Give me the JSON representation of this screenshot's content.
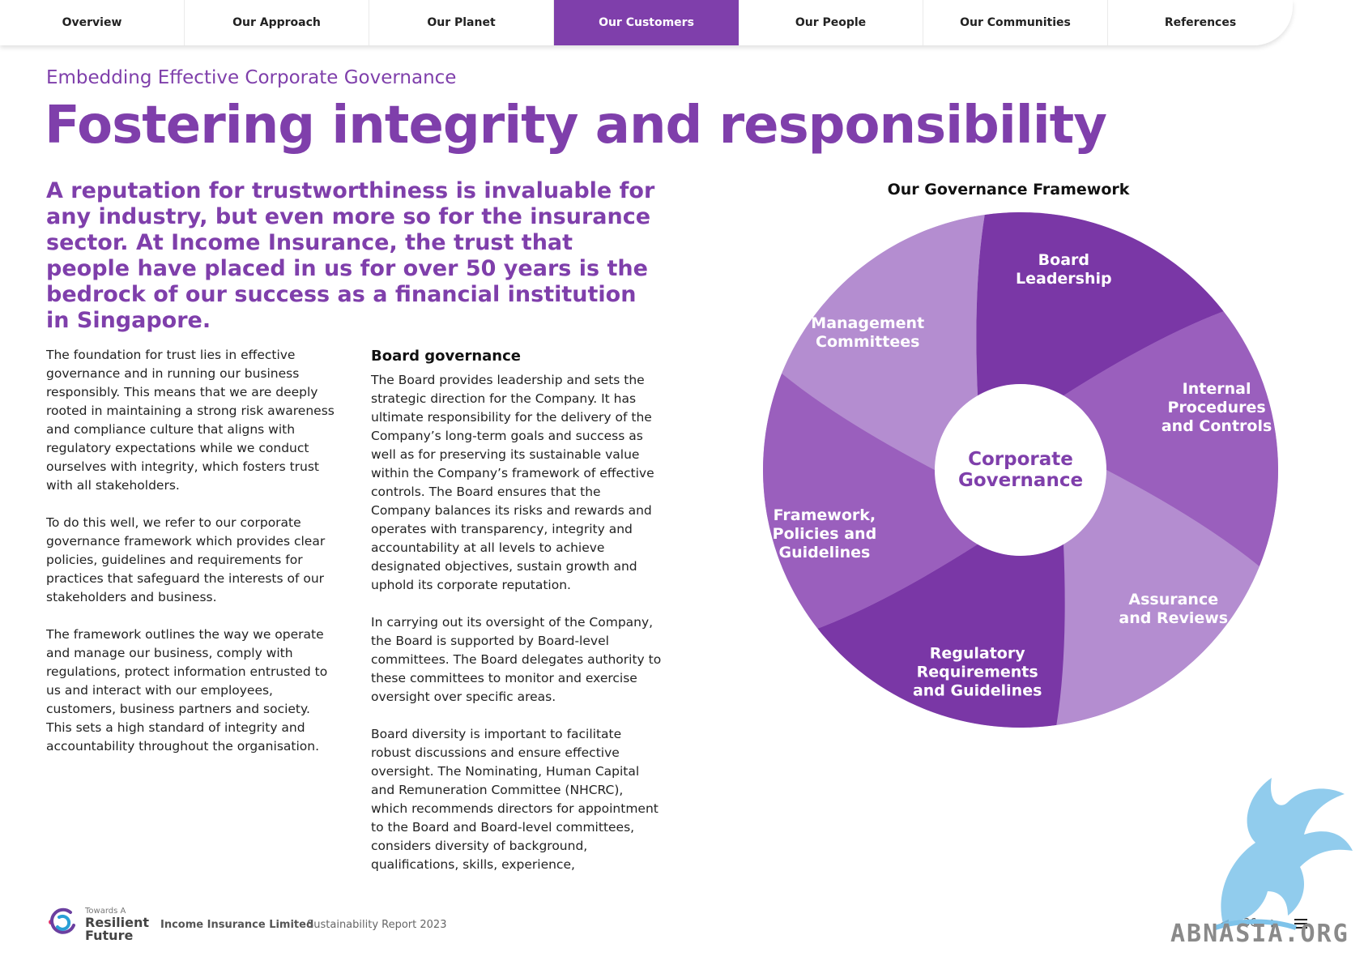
{
  "nav": {
    "tabs": [
      "Overview",
      "Our Approach",
      "Our Planet",
      "Our Customers",
      "Our People",
      "Our Communities",
      "References"
    ],
    "active_index": 3
  },
  "eyebrow": "Embedding Effective Corporate Governance",
  "title": "Fostering integrity and responsibility",
  "lead": "A reputation for trustworthiness is invaluable for any industry, but even more so for the insurance sector. At Income Insurance, the trust that people have placed in us for over 50 years is the bedrock of our success as a financial institution in Singapore.",
  "column1": {
    "p1": "The foundation for trust lies in effective governance and in running our business responsibly. This means that we are deeply rooted in maintaining a strong risk awareness and compliance culture that aligns with regulatory expectations while we conduct ourselves with integrity, which fosters trust with all stakeholders.",
    "p2": "To do this well, we refer to our corporate governance framework which provides clear policies, guidelines and requirements for practices that safeguard the interests of our stakeholders and business.",
    "p3": "The framework outlines the way we operate and manage our business, comply with regulations, protect information entrusted to us and interact with our employees, customers, business partners and society. This sets a high standard of integrity and accountability throughout the organisation."
  },
  "column2": {
    "heading": "Board governance",
    "p1": "The Board provides leadership and sets the strategic direction for the Company. It has ultimate responsibility for the delivery of the Company’s long-term goals and success as well as for preserving its sustainable value within the Company’s framework of effective controls. The Board ensures that the Company balances its risks and rewards and operates with transparency, integrity and accountability at all levels to achieve designated objectives, sustain growth and uphold its corporate reputation.",
    "p2": "In carrying out its oversight of the Company, the Board is supported by Board-level committees. The Board delegates authority to these committees to monitor and exercise oversight over specific areas.",
    "p3": "Board diversity is important to facilitate robust discussions and ensure effective oversight. The Nominating, Human Capital and Remuneration Committee (NHCRC), which recommends directors for appointment to the Board and Board-level committees, considers diversity of background, qualifications, skills, experience,"
  },
  "framework": {
    "title": "Our Governance Framework",
    "center_line1": "Corporate",
    "center_line2": "Governance",
    "segments": [
      {
        "lines": [
          "Board",
          "Leadership"
        ],
        "color": "#7a37a6"
      },
      {
        "lines": [
          "Internal",
          "Procedures",
          "and Controls"
        ],
        "color": "#9a5fbd"
      },
      {
        "lines": [
          "Assurance",
          "and Reviews"
        ],
        "color": "#b48dd0"
      },
      {
        "lines": [
          "Regulatory",
          "Requirements",
          "and Guidelines"
        ],
        "color": "#7a37a6"
      },
      {
        "lines": [
          "Framework,",
          "Policies and",
          "Guidelines"
        ],
        "color": "#9a5fbd"
      },
      {
        "lines": [
          "Management",
          "Committees"
        ],
        "color": "#b48dd0"
      }
    ]
  },
  "footer": {
    "logo_small": "Towards A",
    "logo_line1": "Resilient",
    "logo_line2": "Future",
    "company": "Income Insurance Limited",
    "report": "Sustainability Report 2023",
    "page_number": "36"
  },
  "watermark": "ABNASIA.ORG",
  "colors": {
    "accent": "#7f3fab",
    "dark": "#7a37a6",
    "mid": "#9a5fbd",
    "light": "#b48dd0"
  }
}
